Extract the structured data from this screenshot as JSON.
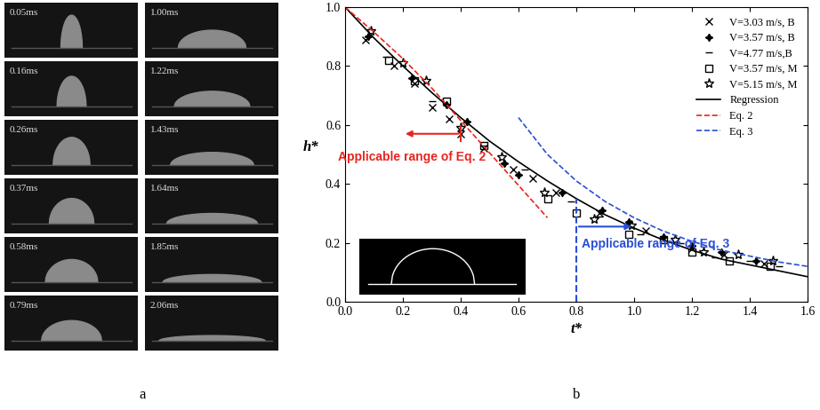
{
  "panel_a": {
    "label": "a",
    "frames": [
      "0.05ms",
      "0.16ms",
      "0.26ms",
      "0.37ms",
      "0.58ms",
      "0.79ms",
      "1.00ms",
      "1.22ms",
      "1.43ms",
      "1.64ms",
      "1.85ms",
      "2.06ms"
    ]
  },
  "chart_data": {
    "type": "scatter",
    "panel_label": "b",
    "x_label": "t*",
    "y_label": "h*",
    "xlim": [
      0.0,
      1.6
    ],
    "ylim": [
      0.0,
      1.0
    ],
    "xticks": [
      {
        "value": 0.0,
        "label": "0.0"
      },
      {
        "value": 0.2,
        "label": "0.2"
      },
      {
        "value": 0.4,
        "label": "0.4"
      },
      {
        "value": 0.6,
        "label": "0.6"
      },
      {
        "value": 0.8,
        "label": "0.8"
      },
      {
        "value": 1.0,
        "label": "1.0"
      },
      {
        "value": 1.2,
        "label": "1.2"
      },
      {
        "value": 1.4,
        "label": "1.4"
      },
      {
        "value": 1.6,
        "label": "1.6"
      }
    ],
    "yticks": [
      {
        "value": 0.0,
        "label": "0.0"
      },
      {
        "value": 0.2,
        "label": "0.2"
      },
      {
        "value": 0.4,
        "label": "0.4"
      },
      {
        "value": 0.6,
        "label": "0.6"
      },
      {
        "value": 0.8,
        "label": "0.8"
      },
      {
        "value": 1.0,
        "label": "1.0"
      }
    ],
    "legend": "upper right",
    "series": [
      {
        "name": "V=3.03 m/s, B",
        "type": "scatter",
        "marker": "x",
        "color": "#000000",
        "x": [
          0.07,
          0.17,
          0.24,
          0.3,
          0.36,
          0.4,
          0.48,
          0.58,
          0.65,
          0.73,
          0.88,
          1.04,
          1.2,
          1.31,
          1.45
        ],
        "values": [
          0.89,
          0.8,
          0.74,
          0.66,
          0.62,
          0.57,
          0.52,
          0.45,
          0.42,
          0.37,
          0.3,
          0.24,
          0.18,
          0.16,
          0.13
        ]
      },
      {
        "name": "V=3.57 m/s, B",
        "type": "scatter",
        "marker": "plus",
        "color": "#000000",
        "x": [
          0.08,
          0.23,
          0.35,
          0.42,
          0.55,
          0.6,
          0.75,
          0.89,
          0.98,
          1.1,
          1.2,
          1.3,
          1.42
        ],
        "values": [
          0.9,
          0.76,
          0.67,
          0.61,
          0.47,
          0.43,
          0.37,
          0.31,
          0.27,
          0.22,
          0.19,
          0.17,
          0.14
        ]
      },
      {
        "name": "V=4.77 m/s,B",
        "type": "scatter",
        "marker": "hline",
        "color": "#000000",
        "x": [
          0.14,
          0.3,
          0.48,
          0.62,
          0.78,
          0.88,
          1.02,
          1.16,
          1.28,
          1.4,
          1.5
        ],
        "values": [
          0.83,
          0.68,
          0.53,
          0.45,
          0.34,
          0.29,
          0.23,
          0.2,
          0.15,
          0.14,
          0.12
        ]
      },
      {
        "name": "V=3.57 m/s, M",
        "type": "scatter",
        "marker": "square",
        "color": "#000000",
        "x": [
          0.15,
          0.24,
          0.35,
          0.48,
          0.7,
          0.8,
          0.98,
          1.1,
          1.2,
          1.33,
          1.47
        ],
        "values": [
          0.82,
          0.75,
          0.68,
          0.53,
          0.35,
          0.3,
          0.23,
          0.21,
          0.17,
          0.14,
          0.12
        ]
      },
      {
        "name": "V=5.15 m/s, M",
        "type": "scatter",
        "marker": "star",
        "color": "#000000",
        "x": [
          0.09,
          0.2,
          0.28,
          0.4,
          0.54,
          0.69,
          0.86,
          0.99,
          1.14,
          1.24,
          1.36,
          1.48
        ],
        "values": [
          0.92,
          0.81,
          0.75,
          0.59,
          0.49,
          0.37,
          0.28,
          0.26,
          0.21,
          0.17,
          0.16,
          0.14
        ]
      },
      {
        "name": "Regression",
        "type": "line",
        "line_style": "solid",
        "color": "#000000",
        "x": [
          0.0,
          0.1,
          0.2,
          0.3,
          0.4,
          0.5,
          0.6,
          0.7,
          0.8,
          0.9,
          1.0,
          1.1,
          1.2,
          1.3,
          1.4,
          1.5,
          1.6
        ],
        "values": [
          1.0,
          0.895,
          0.8,
          0.71,
          0.625,
          0.545,
          0.475,
          0.41,
          0.35,
          0.295,
          0.25,
          0.21,
          0.175,
          0.145,
          0.125,
          0.105,
          0.085
        ]
      },
      {
        "name": "Eq. 2",
        "type": "line",
        "line_style": "dashed",
        "color": "#e8251f",
        "x": [
          0.0,
          0.1,
          0.2,
          0.3,
          0.4,
          0.5,
          0.6,
          0.7
        ],
        "values": [
          1.0,
          0.915,
          0.825,
          0.725,
          0.615,
          0.505,
          0.395,
          0.285
        ]
      },
      {
        "name": "Eq. 3",
        "type": "line",
        "line_style": "dashed",
        "color": "#2a4fd6",
        "x": [
          0.6,
          0.7,
          0.8,
          0.9,
          1.0,
          1.1,
          1.2,
          1.3,
          1.4,
          1.5,
          1.6
        ],
        "values": [
          0.625,
          0.5,
          0.41,
          0.34,
          0.285,
          0.24,
          0.205,
          0.175,
          0.155,
          0.135,
          0.12
        ]
      }
    ],
    "annotations": [
      {
        "text": "Applicable range of Eq. 2",
        "color": "#e8251f",
        "range_end": 0.4
      },
      {
        "text": "Applicable range of Eq. 3",
        "color": "#2a4fd6",
        "range_start": 0.8
      }
    ]
  }
}
